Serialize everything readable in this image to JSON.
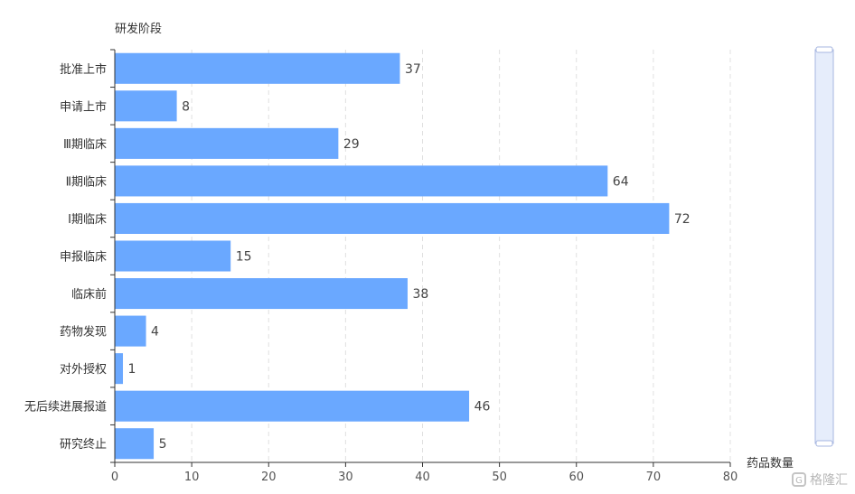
{
  "chart_data": {
    "type": "bar",
    "orientation": "horizontal",
    "ylabel": "研发阶段",
    "xlabel": "药品数量",
    "categories": [
      "批准上市",
      "申请上市",
      "Ⅲ期临床",
      "Ⅱ期临床",
      "Ⅰ期临床",
      "申报临床",
      "临床前",
      "药物发现",
      "对外授权",
      "无后续进展报道",
      "研究终止"
    ],
    "values": [
      37,
      8,
      29,
      64,
      72,
      15,
      38,
      4,
      1,
      46,
      5
    ],
    "xlim": [
      0,
      80
    ],
    "xticks": [
      0,
      10,
      20,
      30,
      40,
      50,
      60,
      70,
      80
    ],
    "grid": "vertical dashed",
    "bar_color": "#6aa8ff",
    "data_labels": "right of bar",
    "has_vertical_datazoom": true
  },
  "watermark": {
    "text": "格隆汇",
    "icon": "g-logo-icon"
  },
  "colors": {
    "bar": "#6aa8ff",
    "grid": "#e0e0e0",
    "axis": "#333333",
    "slider_fill": "#e6edfb",
    "slider_border": "#a7b7e0"
  }
}
